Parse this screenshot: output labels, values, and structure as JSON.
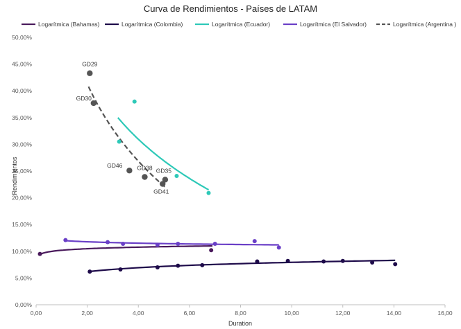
{
  "chart_data": {
    "type": "scatter",
    "title": "Curva de Rendimientos - Países de LATAM",
    "xlabel": "Duration",
    "ylabel": "Rendimientos",
    "xlim": [
      0,
      16
    ],
    "ylim": [
      0,
      50
    ],
    "x_ticks": [
      "0,00",
      "2,00",
      "4,00",
      "6,00",
      "8,00",
      "10,00",
      "12,00",
      "14,00",
      "16,00"
    ],
    "y_ticks": [
      "0,00%",
      "5,00%",
      "10,00%",
      "15,00%",
      "20,00%",
      "25,00%",
      "30,00%",
      "35,00%",
      "40,00%",
      "45,00%",
      "50,00%"
    ],
    "grid": false,
    "legend_position": "top",
    "legend": [
      {
        "label": "Logarítmica (Bahamas)",
        "color": "#4a1a5c",
        "dash": "solid"
      },
      {
        "label": "Logarítmica (Colombia)",
        "color": "#1e0b4a",
        "dash": "solid"
      },
      {
        "label": "Logarítmica (Ecuador)",
        "color": "#2ec9b8",
        "dash": "solid"
      },
      {
        "label": "Logarítmica (El Salvador)",
        "color": "#6a3fc7",
        "dash": "solid"
      },
      {
        "label": "Logarítmica (Argentina )",
        "color": "#555555",
        "dash": "dashed"
      }
    ],
    "series": [
      {
        "key": "argentina",
        "color": "#555555",
        "radius": 4.2,
        "points": [
          {
            "x": 2.1,
            "y": 43.3,
            "label": "GD29"
          },
          {
            "x": 2.25,
            "y": 37.7,
            "label": "GD30"
          },
          {
            "x": 3.65,
            "y": 25.1,
            "label": "GD46"
          },
          {
            "x": 4.25,
            "y": 23.9,
            "label": "GD38"
          },
          {
            "x": 5.05,
            "y": 23.4,
            "label": "GD35"
          },
          {
            "x": 4.95,
            "y": 22.6,
            "label": "GD41"
          }
        ],
        "trend": {
          "x_from": 2.05,
          "x_to": 5.05,
          "y_from": 40.8,
          "y_to": 22.0,
          "dash": "dashed"
        }
      },
      {
        "key": "ecuador",
        "color": "#2ec9b8",
        "radius": 3,
        "points": [
          {
            "x": 3.85,
            "y": 38.0
          },
          {
            "x": 3.25,
            "y": 30.5
          },
          {
            "x": 5.5,
            "y": 24.1
          },
          {
            "x": 6.75,
            "y": 20.9
          }
        ],
        "trend": {
          "x_from": 3.2,
          "x_to": 6.75,
          "y_from": 35.0,
          "y_to": 21.5,
          "dash": "solid"
        }
      },
      {
        "key": "el_salvador",
        "color": "#6a3fc7",
        "radius": 3,
        "points": [
          {
            "x": 1.15,
            "y": 12.1
          },
          {
            "x": 2.8,
            "y": 11.7
          },
          {
            "x": 3.4,
            "y": 11.4
          },
          {
            "x": 4.75,
            "y": 11.2
          },
          {
            "x": 5.55,
            "y": 11.4
          },
          {
            "x": 7.0,
            "y": 11.4
          },
          {
            "x": 8.55,
            "y": 11.9
          },
          {
            "x": 9.5,
            "y": 10.7
          }
        ],
        "trend": {
          "x_from": 1.1,
          "x_to": 9.5,
          "y_from": 12.0,
          "y_to": 11.2,
          "dash": "solid"
        }
      },
      {
        "key": "bahamas",
        "color": "#4a1a5c",
        "radius": 3,
        "points": [
          {
            "x": 0.15,
            "y": 9.5
          },
          {
            "x": 6.85,
            "y": 10.2
          }
        ],
        "trend": {
          "x_from": 0.15,
          "x_to": 6.9,
          "y_from": 9.4,
          "y_to": 11.0,
          "dash": "solid"
        }
      },
      {
        "key": "colombia",
        "color": "#1e0b4a",
        "radius": 3,
        "points": [
          {
            "x": 2.1,
            "y": 6.2
          },
          {
            "x": 3.3,
            "y": 6.6
          },
          {
            "x": 4.75,
            "y": 7.0
          },
          {
            "x": 5.55,
            "y": 7.3
          },
          {
            "x": 6.5,
            "y": 7.4
          },
          {
            "x": 8.65,
            "y": 8.1
          },
          {
            "x": 9.85,
            "y": 8.2
          },
          {
            "x": 11.25,
            "y": 8.1
          },
          {
            "x": 12.0,
            "y": 8.2
          },
          {
            "x": 13.15,
            "y": 7.9
          },
          {
            "x": 14.05,
            "y": 7.6
          }
        ],
        "trend": {
          "x_from": 2.05,
          "x_to": 14.05,
          "y_from": 6.2,
          "y_to": 8.3,
          "dash": "solid"
        }
      }
    ]
  }
}
